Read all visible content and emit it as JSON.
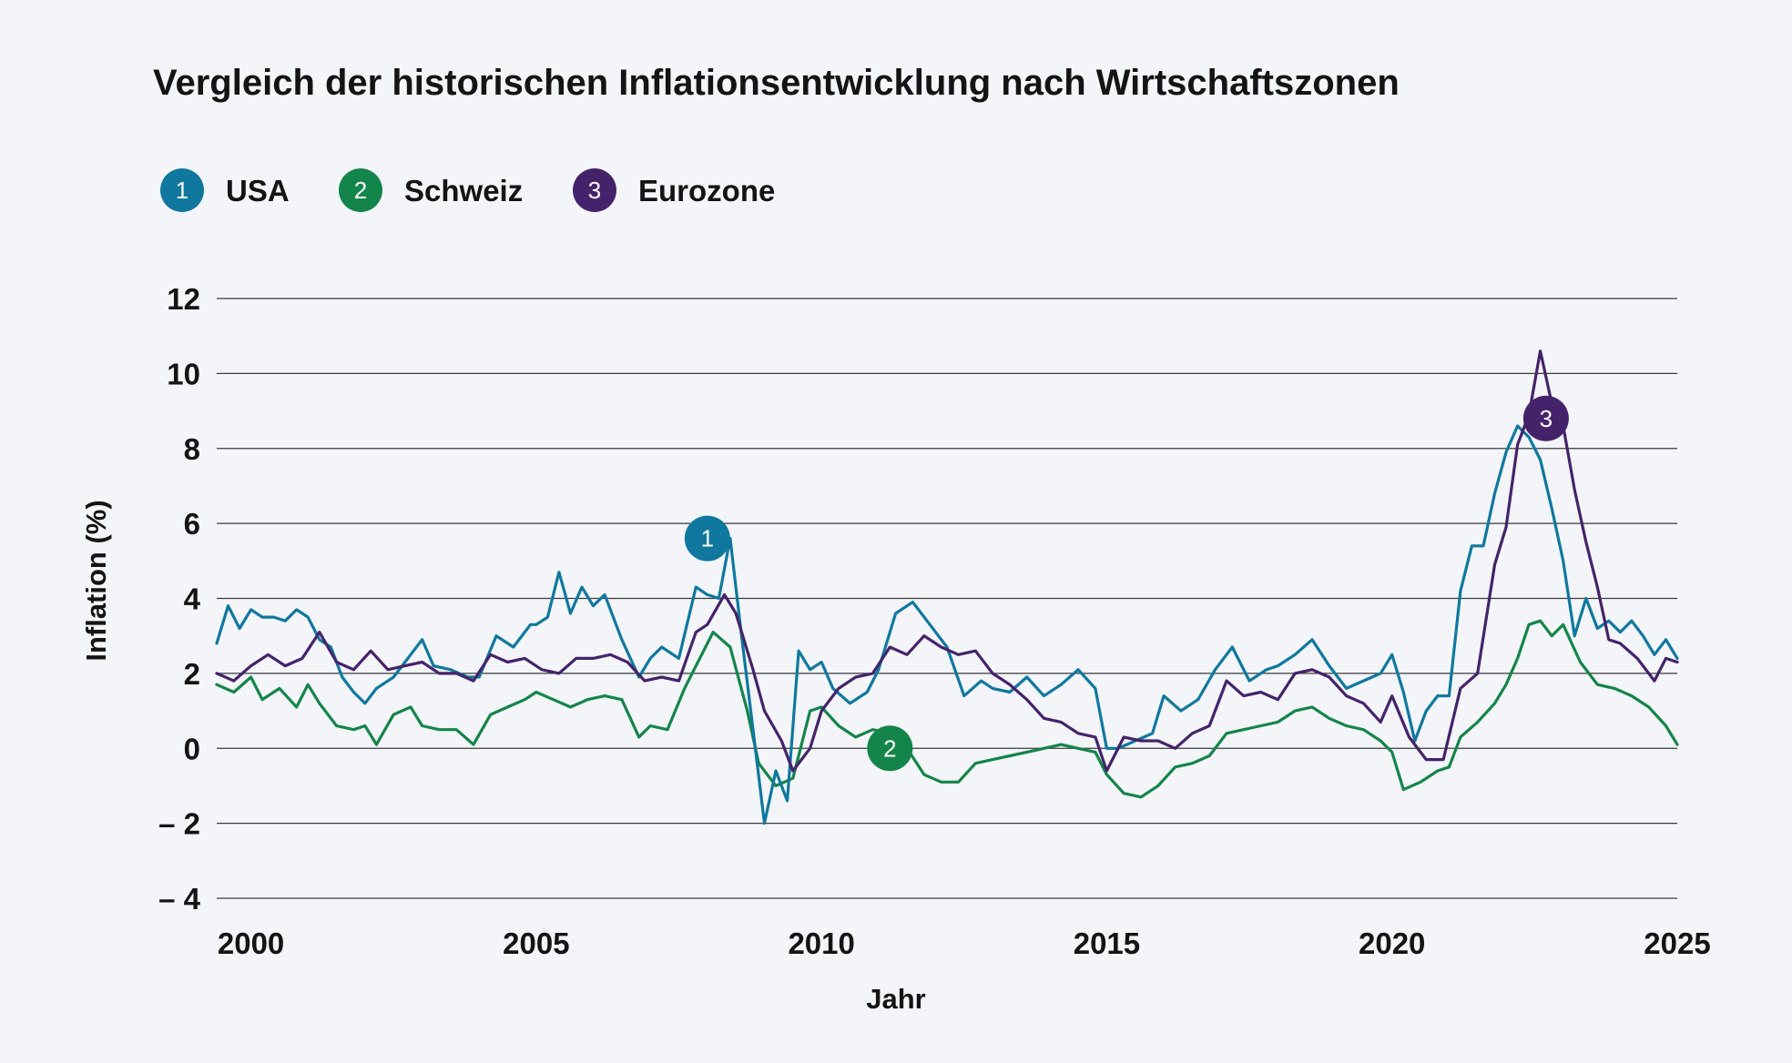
{
  "chart_data": {
    "type": "line",
    "title": "Vergleich der historischen Inflationsentwicklung nach Wirtschaftszonen",
    "xlabel": "Jahr",
    "ylabel": "Inflation (%)",
    "xlim": [
      1999.4,
      2025.0
    ],
    "ylim": [
      -4,
      12
    ],
    "x_ticks": [
      2000,
      2005,
      2010,
      2015,
      2020,
      2025
    ],
    "y_ticks": [
      -4,
      -2,
      0,
      2,
      4,
      6,
      8,
      10,
      12
    ],
    "y_tick_labels": [
      "– 4",
      "– 2",
      "0",
      "2",
      "4",
      "6",
      "8",
      "10",
      "12"
    ],
    "grid": true,
    "legend_position": "top-left",
    "series": [
      {
        "id": "1",
        "name": "USA",
        "color": "#10789e",
        "x": [
          1999.4,
          1999.6,
          1999.8,
          2000.0,
          2000.2,
          2000.4,
          2000.6,
          2000.8,
          2001.0,
          2001.2,
          2001.4,
          2001.6,
          2001.8,
          2002.0,
          2002.2,
          2002.5,
          2002.8,
          2003.0,
          2003.2,
          2003.5,
          2003.8,
          2004.0,
          2004.3,
          2004.6,
          2004.9,
          2005.0,
          2005.2,
          2005.4,
          2005.6,
          2005.8,
          2006.0,
          2006.2,
          2006.5,
          2006.8,
          2007.0,
          2007.2,
          2007.5,
          2007.8,
          2008.0,
          2008.2,
          2008.4,
          2008.6,
          2008.8,
          2009.0,
          2009.2,
          2009.4,
          2009.6,
          2009.8,
          2010.0,
          2010.2,
          2010.5,
          2010.8,
          2011.0,
          2011.3,
          2011.6,
          2011.9,
          2012.2,
          2012.5,
          2012.8,
          2013.0,
          2013.3,
          2013.6,
          2013.9,
          2014.2,
          2014.5,
          2014.8,
          2015.0,
          2015.2,
          2015.5,
          2015.8,
          2016.0,
          2016.3,
          2016.6,
          2016.9,
          2017.2,
          2017.5,
          2017.8,
          2018.0,
          2018.3,
          2018.6,
          2018.9,
          2019.2,
          2019.5,
          2019.8,
          2020.0,
          2020.2,
          2020.4,
          2020.6,
          2020.8,
          2021.0,
          2021.2,
          2021.4,
          2021.6,
          2021.8,
          2022.0,
          2022.2,
          2022.4,
          2022.6,
          2022.8,
          2023.0,
          2023.2,
          2023.4,
          2023.6,
          2023.8,
          2024.0,
          2024.2,
          2024.4,
          2024.6,
          2024.8,
          2025.0
        ],
        "values": [
          2.8,
          3.8,
          3.2,
          3.7,
          3.5,
          3.5,
          3.4,
          3.7,
          3.5,
          2.9,
          2.7,
          1.9,
          1.5,
          1.2,
          1.6,
          1.9,
          2.5,
          2.9,
          2.2,
          2.1,
          1.9,
          1.9,
          3.0,
          2.7,
          3.3,
          3.3,
          3.5,
          4.7,
          3.6,
          4.3,
          3.8,
          4.1,
          2.9,
          1.9,
          2.4,
          2.7,
          2.4,
          4.3,
          4.1,
          4.0,
          5.6,
          3.0,
          0.5,
          -2.0,
          -0.6,
          -1.4,
          2.6,
          2.1,
          2.3,
          1.6,
          1.2,
          1.5,
          2.1,
          3.6,
          3.9,
          3.3,
          2.7,
          1.4,
          1.8,
          1.6,
          1.5,
          1.9,
          1.4,
          1.7,
          2.1,
          1.6,
          0.0,
          0.0,
          0.2,
          0.4,
          1.4,
          1.0,
          1.3,
          2.1,
          2.7,
          1.8,
          2.1,
          2.2,
          2.5,
          2.9,
          2.2,
          1.6,
          1.8,
          2.0,
          2.5,
          1.5,
          0.2,
          1.0,
          1.4,
          1.4,
          4.2,
          5.4,
          5.4,
          6.8,
          7.9,
          8.6,
          8.3,
          7.7,
          6.4,
          5.0,
          3.0,
          4.0,
          3.2,
          3.4,
          3.1,
          3.4,
          3.0,
          2.5,
          2.9,
          2.4
        ]
      },
      {
        "id": "2",
        "name": "Schweiz",
        "color": "#14854a",
        "x": [
          1999.4,
          1999.7,
          2000.0,
          2000.2,
          2000.5,
          2000.8,
          2001.0,
          2001.2,
          2001.5,
          2001.8,
          2002.0,
          2002.2,
          2002.5,
          2002.8,
          2003.0,
          2003.3,
          2003.6,
          2003.9,
          2004.2,
          2004.5,
          2004.8,
          2005.0,
          2005.3,
          2005.6,
          2005.9,
          2006.2,
          2006.5,
          2006.8,
          2007.0,
          2007.3,
          2007.6,
          2007.9,
          2008.1,
          2008.4,
          2008.7,
          2008.9,
          2009.2,
          2009.5,
          2009.8,
          2010.0,
          2010.3,
          2010.6,
          2010.9,
          2011.2,
          2011.5,
          2011.8,
          2012.1,
          2012.4,
          2012.7,
          2013.0,
          2013.3,
          2013.6,
          2013.9,
          2014.2,
          2014.5,
          2014.8,
          2015.0,
          2015.3,
          2015.6,
          2015.9,
          2016.2,
          2016.5,
          2016.8,
          2017.1,
          2017.4,
          2017.7,
          2018.0,
          2018.3,
          2018.6,
          2018.9,
          2019.2,
          2019.5,
          2019.8,
          2020.0,
          2020.2,
          2020.5,
          2020.8,
          2021.0,
          2021.2,
          2021.5,
          2021.8,
          2022.0,
          2022.2,
          2022.4,
          2022.6,
          2022.8,
          2023.0,
          2023.3,
          2023.6,
          2023.9,
          2024.2,
          2024.5,
          2024.8,
          2025.0
        ],
        "values": [
          1.7,
          1.5,
          1.9,
          1.3,
          1.6,
          1.1,
          1.7,
          1.2,
          0.6,
          0.5,
          0.6,
          0.1,
          0.9,
          1.1,
          0.6,
          0.5,
          0.5,
          0.1,
          0.9,
          1.1,
          1.3,
          1.5,
          1.3,
          1.1,
          1.3,
          1.4,
          1.3,
          0.3,
          0.6,
          0.5,
          1.6,
          2.5,
          3.1,
          2.7,
          1.0,
          -0.4,
          -1.0,
          -0.8,
          1.0,
          1.1,
          0.6,
          0.3,
          0.5,
          0.4,
          0.0,
          -0.7,
          -0.9,
          -0.9,
          -0.4,
          -0.3,
          -0.2,
          -0.1,
          0.0,
          0.1,
          0.0,
          -0.1,
          -0.7,
          -1.2,
          -1.3,
          -1.0,
          -0.5,
          -0.4,
          -0.2,
          0.4,
          0.5,
          0.6,
          0.7,
          1.0,
          1.1,
          0.8,
          0.6,
          0.5,
          0.2,
          -0.1,
          -1.1,
          -0.9,
          -0.6,
          -0.5,
          0.3,
          0.7,
          1.2,
          1.7,
          2.4,
          3.3,
          3.4,
          3.0,
          3.3,
          2.3,
          1.7,
          1.6,
          1.4,
          1.1,
          0.6,
          0.1
        ]
      },
      {
        "id": "3",
        "name": "Eurozone",
        "color": "#45236a",
        "x": [
          1999.4,
          1999.7,
          2000.0,
          2000.3,
          2000.6,
          2000.9,
          2001.2,
          2001.5,
          2001.8,
          2002.1,
          2002.4,
          2002.7,
          2003.0,
          2003.3,
          2003.6,
          2003.9,
          2004.2,
          2004.5,
          2004.8,
          2005.1,
          2005.4,
          2005.7,
          2006.0,
          2006.3,
          2006.6,
          2006.9,
          2007.2,
          2007.5,
          2007.8,
          2008.0,
          2008.3,
          2008.5,
          2008.8,
          2009.0,
          2009.3,
          2009.5,
          2009.8,
          2010.0,
          2010.3,
          2010.6,
          2010.9,
          2011.2,
          2011.5,
          2011.8,
          2012.1,
          2012.4,
          2012.7,
          2013.0,
          2013.3,
          2013.6,
          2013.9,
          2014.2,
          2014.5,
          2014.8,
          2015.0,
          2015.3,
          2015.6,
          2015.9,
          2016.2,
          2016.5,
          2016.8,
          2017.1,
          2017.4,
          2017.7,
          2018.0,
          2018.3,
          2018.6,
          2018.9,
          2019.2,
          2019.5,
          2019.8,
          2020.0,
          2020.3,
          2020.6,
          2020.9,
          2021.2,
          2021.5,
          2021.8,
          2022.0,
          2022.2,
          2022.4,
          2022.6,
          2022.8,
          2023.0,
          2023.2,
          2023.4,
          2023.6,
          2023.8,
          2024.0,
          2024.3,
          2024.6,
          2024.8,
          2025.0
        ],
        "values": [
          2.0,
          1.8,
          2.2,
          2.5,
          2.2,
          2.4,
          3.1,
          2.3,
          2.1,
          2.6,
          2.1,
          2.2,
          2.3,
          2.0,
          2.0,
          1.8,
          2.5,
          2.3,
          2.4,
          2.1,
          2.0,
          2.4,
          2.4,
          2.5,
          2.3,
          1.8,
          1.9,
          1.8,
          3.1,
          3.3,
          4.1,
          3.6,
          2.1,
          1.0,
          0.2,
          -0.6,
          0.0,
          1.0,
          1.6,
          1.9,
          2.0,
          2.7,
          2.5,
          3.0,
          2.7,
          2.5,
          2.6,
          2.0,
          1.7,
          1.3,
          0.8,
          0.7,
          0.4,
          0.3,
          -0.6,
          0.3,
          0.2,
          0.2,
          0.0,
          0.4,
          0.6,
          1.8,
          1.4,
          1.5,
          1.3,
          2.0,
          2.1,
          1.9,
          1.4,
          1.2,
          0.7,
          1.4,
          0.3,
          -0.3,
          -0.3,
          1.6,
          2.0,
          4.9,
          5.9,
          8.1,
          8.9,
          10.6,
          9.2,
          8.6,
          6.9,
          5.5,
          4.3,
          2.9,
          2.8,
          2.4,
          1.8,
          2.4,
          2.3
        ]
      }
    ],
    "annotations": [
      {
        "label": "1",
        "series": "USA",
        "x": 2008.0,
        "y": 5.6
      },
      {
        "label": "2",
        "series": "Schweiz",
        "x": 2011.2,
        "y": 0.0
      },
      {
        "label": "3",
        "series": "Eurozone",
        "x": 2022.7,
        "y": 8.8
      }
    ]
  }
}
